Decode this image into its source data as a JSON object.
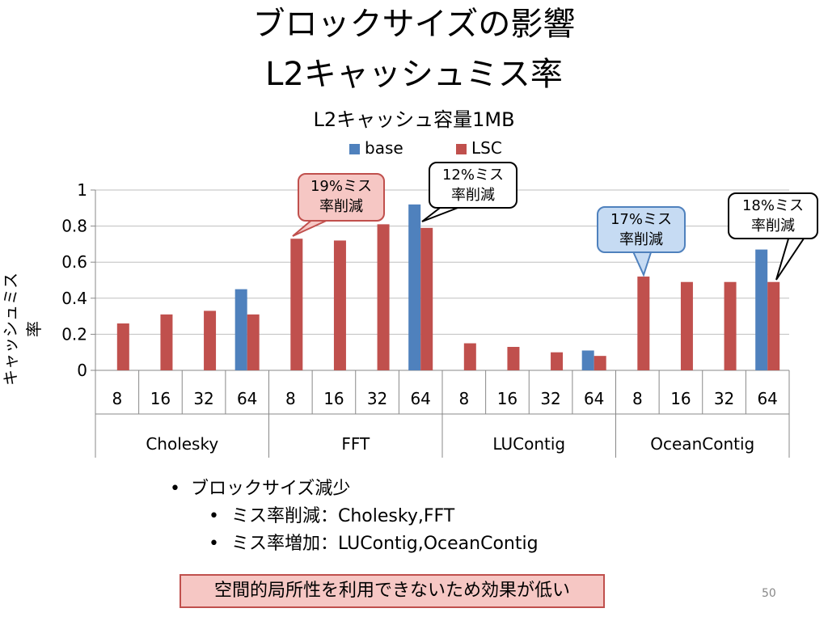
{
  "slide": {
    "title_line1": "ブロックサイズの影響",
    "title_line2": "L2キャッシュミス率",
    "page_number": "50"
  },
  "chart_data": {
    "type": "bar",
    "title": "L2キャッシュ容量1MB",
    "ylabel": "キャッシュミス率",
    "xlabel": "",
    "ylim": [
      0,
      1
    ],
    "yticks": [
      "0",
      "0.2",
      "0.4",
      "0.6",
      "0.8",
      "1"
    ],
    "grid": true,
    "legend_position": "top",
    "groups": [
      "Cholesky",
      "FFT",
      "LUContig",
      "OceanContig"
    ],
    "categories": [
      "8",
      "16",
      "32",
      "64"
    ],
    "series": [
      {
        "name": "base",
        "color": "#4f81bd",
        "values": [
          [
            null,
            null,
            null,
            0.45
          ],
          [
            null,
            null,
            null,
            0.92
          ],
          [
            null,
            null,
            null,
            0.11
          ],
          [
            null,
            null,
            null,
            0.67
          ]
        ]
      },
      {
        "name": "LSC",
        "color": "#c0504d",
        "values": [
          [
            0.26,
            0.31,
            0.33,
            0.31
          ],
          [
            0.73,
            0.72,
            0.81,
            0.79
          ],
          [
            0.15,
            0.13,
            0.1,
            0.08
          ],
          [
            0.52,
            0.49,
            0.49,
            0.49
          ]
        ]
      }
    ],
    "annotations": [
      {
        "line1": "19%ミス",
        "line2": "率削減"
      },
      {
        "line1": "12%ミス",
        "line2": "率削減"
      },
      {
        "line1": "17%ミス",
        "line2": "率削減"
      },
      {
        "line1": "18%ミス",
        "line2": "率削減"
      }
    ]
  },
  "bullets": {
    "level1": "ブロックサイズ減少",
    "level2": [
      "ミス率削減：Cholesky,FFT",
      "ミス率増加：LUContig,OceanContig"
    ],
    "marker": "•"
  },
  "note": "空間的局所性を利用できないため効果が低い"
}
